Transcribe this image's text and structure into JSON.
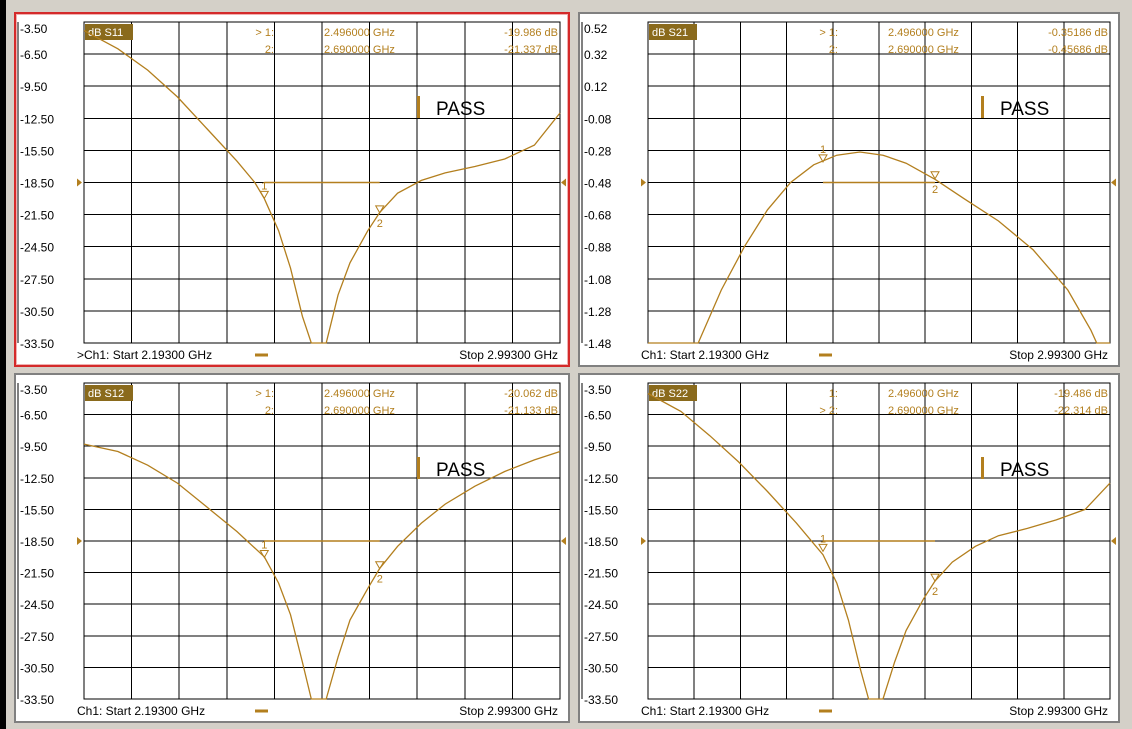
{
  "colors": {
    "trace": "#b37f1e",
    "active_border": "#d42a2a",
    "badge": "#8a6a1c"
  },
  "panels": [
    {
      "id": "s11",
      "active": true,
      "trace_label": "dB S11",
      "yticks": [
        "-3.50",
        "-6.50",
        "-9.50",
        "-12.50",
        "-15.50",
        "-18.50",
        "-21.50",
        "-24.50",
        "-27.50",
        "-30.50",
        "-33.50"
      ],
      "ylim": [
        -33.5,
        -3.5
      ],
      "limit_db": -18.5,
      "markers": [
        {
          "prefix": "> 1:",
          "freq": "2.496000 GHz",
          "value": "-19.986 dB",
          "label": "1",
          "f": 2.496,
          "v": -19.986
        },
        {
          "prefix": "2:",
          "freq": "2.690000 GHz",
          "value": "-21.337 dB",
          "label": "2",
          "f": 2.69,
          "v": -21.337
        }
      ],
      "pass": "PASS",
      "footer_start": ">Ch1: Start  2.19300 GHz",
      "footer_stop": "Stop  2.99300 GHz",
      "trace_points": [
        [
          2.193,
          -4.3
        ],
        [
          2.25,
          -6
        ],
        [
          2.3,
          -8
        ],
        [
          2.35,
          -10.5
        ],
        [
          2.4,
          -13.5
        ],
        [
          2.45,
          -16.5
        ],
        [
          2.48,
          -18.5
        ],
        [
          2.496,
          -20
        ],
        [
          2.52,
          -23
        ],
        [
          2.54,
          -26.5
        ],
        [
          2.56,
          -31
        ],
        [
          2.575,
          -33.5
        ],
        [
          2.6,
          -33.5
        ],
        [
          2.62,
          -29
        ],
        [
          2.64,
          -26
        ],
        [
          2.67,
          -23
        ],
        [
          2.69,
          -21.3
        ],
        [
          2.72,
          -19.5
        ],
        [
          2.76,
          -18.3
        ],
        [
          2.8,
          -17.6
        ],
        [
          2.85,
          -17
        ],
        [
          2.9,
          -16.3
        ],
        [
          2.95,
          -15
        ],
        [
          2.993,
          -12
        ]
      ]
    },
    {
      "id": "s21",
      "active": false,
      "trace_label": "dB S21",
      "yticks": [
        "0.52",
        "0.32",
        "0.12",
        "-0.08",
        "-0.28",
        "-0.48",
        "-0.68",
        "-0.88",
        "-1.08",
        "-1.28",
        "-1.48"
      ],
      "ylim": [
        -1.48,
        0.52
      ],
      "limit_db": -0.48,
      "markers": [
        {
          "prefix": "> 1:",
          "freq": "2.496000 GHz",
          "value": "-0.35186 dB",
          "label": "1",
          "f": 2.496,
          "v": -0.35186
        },
        {
          "prefix": "2:",
          "freq": "2.690000 GHz",
          "value": "-0.45686 dB",
          "label": "2",
          "f": 2.69,
          "v": -0.45686
        }
      ],
      "pass": "PASS",
      "footer_start": "Ch1: Start  2.19300 GHz",
      "footer_stop": "Stop  2.99300 GHz",
      "trace_points": [
        [
          2.193,
          -1.48
        ],
        [
          2.28,
          -1.48
        ],
        [
          2.32,
          -1.15
        ],
        [
          2.36,
          -0.88
        ],
        [
          2.4,
          -0.65
        ],
        [
          2.44,
          -0.48
        ],
        [
          2.48,
          -0.37
        ],
        [
          2.52,
          -0.31
        ],
        [
          2.56,
          -0.29
        ],
        [
          2.6,
          -0.31
        ],
        [
          2.64,
          -0.36
        ],
        [
          2.69,
          -0.46
        ],
        [
          2.74,
          -0.58
        ],
        [
          2.8,
          -0.72
        ],
        [
          2.86,
          -0.9
        ],
        [
          2.92,
          -1.15
        ],
        [
          2.96,
          -1.4
        ],
        [
          2.97,
          -1.48
        ],
        [
          2.993,
          -1.48
        ]
      ]
    },
    {
      "id": "s12",
      "active": false,
      "trace_label": "dB S12",
      "yticks": [
        "-3.50",
        "-6.50",
        "-9.50",
        "-12.50",
        "-15.50",
        "-18.50",
        "-21.50",
        "-24.50",
        "-27.50",
        "-30.50",
        "-33.50"
      ],
      "ylim": [
        -33.5,
        -3.5
      ],
      "limit_db": -18.5,
      "markers": [
        {
          "prefix": "> 1:",
          "freq": "2.496000 GHz",
          "value": "-20.062 dB",
          "label": "1",
          "f": 2.496,
          "v": -20.062
        },
        {
          "prefix": "2:",
          "freq": "2.690000 GHz",
          "value": "-21.133 dB",
          "label": "2",
          "f": 2.69,
          "v": -21.133
        }
      ],
      "pass": "PASS",
      "footer_start": "Ch1: Start  2.19300 GHz",
      "footer_stop": "Stop  2.99300 GHz",
      "trace_points": [
        [
          2.193,
          -9.3
        ],
        [
          2.25,
          -10
        ],
        [
          2.3,
          -11.3
        ],
        [
          2.35,
          -13
        ],
        [
          2.4,
          -15.3
        ],
        [
          2.45,
          -17.6
        ],
        [
          2.496,
          -20
        ],
        [
          2.52,
          -22.5
        ],
        [
          2.54,
          -25.5
        ],
        [
          2.56,
          -30
        ],
        [
          2.575,
          -33.5
        ],
        [
          2.6,
          -33.5
        ],
        [
          2.62,
          -29.5
        ],
        [
          2.64,
          -26
        ],
        [
          2.67,
          -23
        ],
        [
          2.69,
          -21.1
        ],
        [
          2.72,
          -19
        ],
        [
          2.76,
          -16.8
        ],
        [
          2.8,
          -15
        ],
        [
          2.85,
          -13.3
        ],
        [
          2.9,
          -11.9
        ],
        [
          2.95,
          -10.8
        ],
        [
          2.993,
          -10
        ]
      ]
    },
    {
      "id": "s22",
      "active": false,
      "trace_label": "dB S22",
      "yticks": [
        "-3.50",
        "-6.50",
        "-9.50",
        "-12.50",
        "-15.50",
        "-18.50",
        "-21.50",
        "-24.50",
        "-27.50",
        "-30.50",
        "-33.50"
      ],
      "ylim": [
        -33.5,
        -3.5
      ],
      "limit_db": -18.5,
      "markers": [
        {
          "prefix": "1:",
          "freq": "2.496000 GHz",
          "value": "-19.486 dB",
          "label": "1",
          "f": 2.496,
          "v": -19.486
        },
        {
          "prefix": "> 2:",
          "freq": "2.690000 GHz",
          "value": "-22.314 dB",
          "label": "2",
          "f": 2.69,
          "v": -22.314
        }
      ],
      "pass": "PASS",
      "footer_start": "Ch1: Start  2.19300 GHz",
      "footer_stop": "Stop  2.99300 GHz",
      "trace_points": [
        [
          2.193,
          -4.5
        ],
        [
          2.25,
          -6.2
        ],
        [
          2.3,
          -8.5
        ],
        [
          2.35,
          -11
        ],
        [
          2.4,
          -13.8
        ],
        [
          2.45,
          -16.8
        ],
        [
          2.496,
          -19.8
        ],
        [
          2.52,
          -22.5
        ],
        [
          2.54,
          -26
        ],
        [
          2.56,
          -30.5
        ],
        [
          2.575,
          -33.5
        ],
        [
          2.6,
          -33.5
        ],
        [
          2.62,
          -30
        ],
        [
          2.64,
          -27
        ],
        [
          2.67,
          -24
        ],
        [
          2.69,
          -22.3
        ],
        [
          2.72,
          -20.5
        ],
        [
          2.76,
          -19
        ],
        [
          2.8,
          -18
        ],
        [
          2.85,
          -17.3
        ],
        [
          2.9,
          -16.5
        ],
        [
          2.95,
          -15.5
        ],
        [
          2.993,
          -13
        ]
      ]
    }
  ]
}
